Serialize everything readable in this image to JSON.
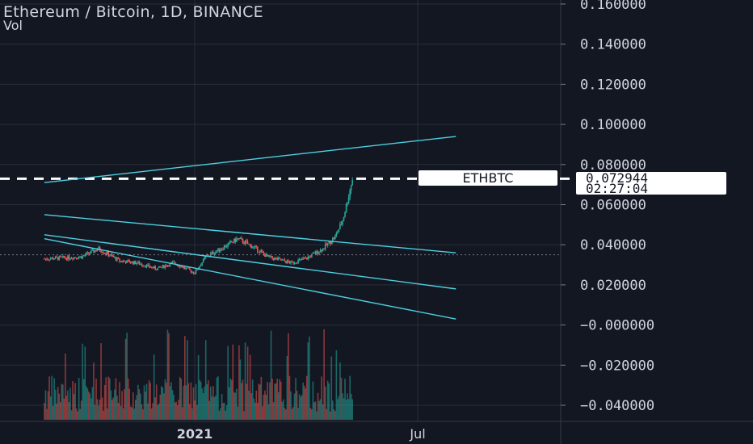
{
  "header": {
    "title": "Ethereum / Bitcoin, 1D, BINANCE",
    "volume_label": "Vol"
  },
  "price_scale": {
    "labels": [
      "0.160000",
      "0.140000",
      "0.120000",
      "0.100000",
      "0.080000",
      "0.060000",
      "0.040000",
      "0.020000",
      "−0.000000",
      "−0.020000",
      "−0.040000"
    ]
  },
  "time_scale": {
    "labels": [
      "2021",
      "Jul"
    ]
  },
  "last_price": {
    "symbol": "ETHBTC",
    "value": "0.072944",
    "countdown": "02:27:04"
  },
  "colors": {
    "background": "#131722",
    "grid": "#2a2e39",
    "up": "#26a69a",
    "down": "#ef5350",
    "trendline": "#4dd0e1",
    "text": "#d1d4dc"
  },
  "chart_data": {
    "type": "candlestick",
    "title": "Ethereum / Bitcoin, 1D, BINANCE",
    "symbol": "ETHBTC",
    "interval": "1D",
    "exchange": "BINANCE",
    "ylim": [
      -0.048,
      0.162
    ],
    "yticks": [
      0.16,
      0.14,
      0.12,
      0.1,
      0.08,
      0.06,
      0.04,
      0.02,
      0.0,
      -0.02,
      -0.04
    ],
    "xticks": [
      "2021",
      "Jul"
    ],
    "last_price": 0.072944,
    "approx_close_series": [
      {
        "date": "2020-09",
        "close": 0.033
      },
      {
        "date": "2020-10",
        "close": 0.034
      },
      {
        "date": "2020-10-15",
        "close": 0.038
      },
      {
        "date": "2020-11",
        "close": 0.032
      },
      {
        "date": "2020-11-15",
        "close": 0.031
      },
      {
        "date": "2020-12",
        "close": 0.028
      },
      {
        "date": "2020-12-15",
        "close": 0.031
      },
      {
        "date": "2021-01-01",
        "close": 0.026
      },
      {
        "date": "2021-01-10",
        "close": 0.034
      },
      {
        "date": "2021-01-25",
        "close": 0.039
      },
      {
        "date": "2021-02-05",
        "close": 0.043
      },
      {
        "date": "2021-02-20",
        "close": 0.038
      },
      {
        "date": "2021-03-01",
        "close": 0.034
      },
      {
        "date": "2021-03-20",
        "close": 0.031
      },
      {
        "date": "2021-04-01",
        "close": 0.033
      },
      {
        "date": "2021-04-15",
        "close": 0.038
      },
      {
        "date": "2021-04-25",
        "close": 0.044
      },
      {
        "date": "2021-05-01",
        "close": 0.052
      },
      {
        "date": "2021-05-05",
        "close": 0.062
      },
      {
        "date": "2021-05-09",
        "close": 0.072944
      }
    ],
    "trendlines": [
      {
        "from": {
          "date": "2020-09",
          "price": 0.071
        },
        "to": {
          "date": "2021-08",
          "price": 0.094
        }
      },
      {
        "from": {
          "date": "2020-09",
          "price": 0.055
        },
        "to": {
          "date": "2021-08",
          "price": 0.036
        }
      },
      {
        "from": {
          "date": "2020-09",
          "price": 0.045
        },
        "to": {
          "date": "2021-08",
          "price": 0.018
        }
      },
      {
        "from": {
          "date": "2020-09",
          "price": 0.043
        },
        "to": {
          "date": "2021-08",
          "price": 0.003
        }
      }
    ],
    "horizontal_levels": [
      {
        "price": 0.072944,
        "style": "dashed-white"
      },
      {
        "price": 0.035,
        "style": "dotted-gray"
      }
    ],
    "volume": "present (histogram, unlabeled values)"
  }
}
